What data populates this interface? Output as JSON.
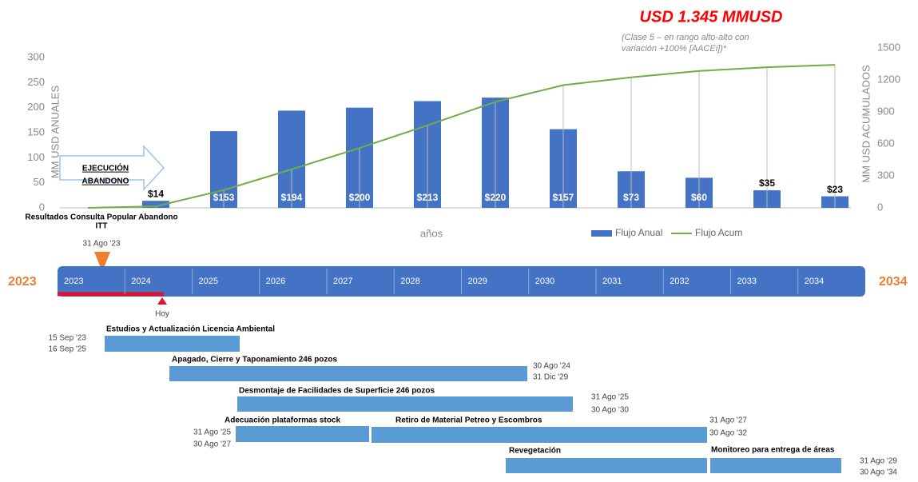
{
  "chart_data": {
    "type": "bar_line",
    "title": "USD 1.345 MMUSD",
    "subtitle": [
      "(Clase 5 – en rango alto-alto con",
      "variación  +100% [AACEi])*"
    ],
    "x_label": "años",
    "y_label": "MM USD  ANUALES",
    "y2_label": "MM USD ACUMULADOS",
    "categories": [
      null,
      null,
      null,
      null,
      null,
      null,
      null,
      null,
      null,
      null,
      null,
      null
    ],
    "series": [
      {
        "name": "Flujo Anual",
        "color": "#4472c4",
        "type": "bar",
        "values": [
          null,
          14,
          153,
          194,
          200,
          213,
          220,
          157,
          73,
          60,
          35,
          23
        ],
        "value_labels": [
          null,
          "$14",
          "$153",
          "$194",
          "$200",
          "$213",
          "$220",
          "$157",
          "$73",
          "$60",
          "$35",
          "$23"
        ]
      },
      {
        "name": "Flujo Acum",
        "color": "#70ad47",
        "type": "line",
        "axis": "y2",
        "values": [
          0,
          14,
          167,
          361,
          561,
          774,
          994,
          1151,
          1224,
          1284,
          1319,
          1342
        ]
      }
    ],
    "ylim": [
      0,
      300
    ],
    "yticks": [
      0,
      50,
      100,
      150,
      200,
      250,
      300
    ],
    "y2lim": [
      0,
      1500
    ],
    "y2ticks": [
      0,
      300,
      600,
      900,
      1200,
      1500
    ],
    "legend": "bottom-right",
    "grid": false
  },
  "annotation": {
    "arrow": [
      "EJECUCIÓN",
      "ABANDONO"
    ],
    "event": [
      "Resultados Consulta  Popular Abandono",
      "ITT"
    ],
    "event_date": "31 Ago '23"
  },
  "timeline": {
    "start": "2023",
    "end": "2034",
    "today": "Hoy",
    "years": [
      "2023",
      "2024",
      "2025",
      "2026",
      "2027",
      "2028",
      "2029",
      "2030",
      "2031",
      "2032",
      "2033",
      "2034"
    ]
  },
  "tasks": [
    {
      "name": "Estudios  y Actualización Licencia Ambiental",
      "dates": [
        "15 Sep '23",
        "16 Sep '25"
      ]
    },
    {
      "name": "Apagado, Cierre y Taponamiento 246 pozos",
      "dates": [
        "30 Ago '24",
        "31 Dic '29"
      ]
    },
    {
      "name": "Desmontaje de Facilidades de Superficie 246 pozos",
      "dates": [
        "31 Ago '25",
        "30 Ago '30"
      ]
    },
    {
      "name": "Adecuación plataformas stock",
      "dates": [
        "31 Ago '25",
        "30 Ago '27"
      ]
    },
    {
      "name": "Retiro de Material Petreo y Escombros",
      "dates": [
        "31 Ago '27",
        "30 Ago '32"
      ]
    },
    {
      "name": "Revegetación"
    },
    {
      "name": "Monitoreo para entrega de áreas",
      "dates": [
        "31 Ago '29",
        "30 Ago '34"
      ]
    }
  ]
}
